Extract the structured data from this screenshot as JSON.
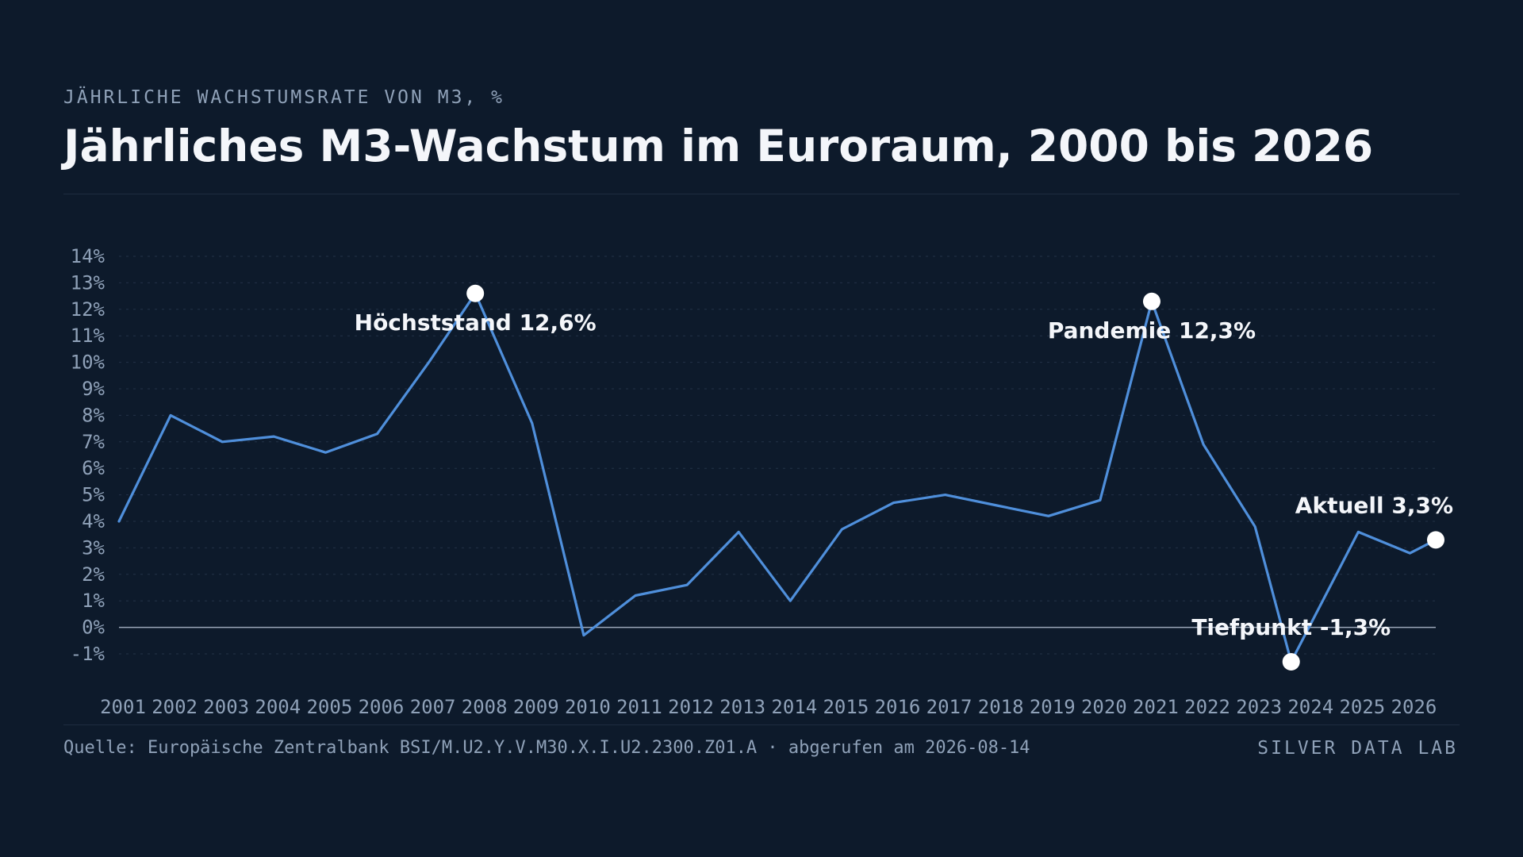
{
  "header": {
    "eyebrow": "JÄHRLICHE WACHSTUMSRATE VON M3, %",
    "title": "Jährliches M3-Wachstum im Euroraum, 2000 bis 2026"
  },
  "footer": {
    "source": "Quelle: Europäische Zentralbank BSI/M.U2.Y.V.M30.X.I.U2.2300.Z01.A · abgerufen am 2026-08-14",
    "brand": "SILVER DATA LAB"
  },
  "colors": {
    "background": "#0d1a2b",
    "line": "#4f8fdb",
    "text": "#f4f6fa",
    "muted": "#8fa1b8",
    "grid": "#233247",
    "zero_line": "#9aa7b8",
    "marker": "#ffffff"
  },
  "chart_data": {
    "type": "line",
    "x": [
      2001.0,
      2002.0,
      2003.0,
      2004.0,
      2005.0,
      2006.0,
      2007.0,
      2007.9,
      2009.0,
      2010.0,
      2011.0,
      2012.0,
      2013.0,
      2014.0,
      2015.0,
      2016.0,
      2017.0,
      2018.0,
      2019.0,
      2020.0,
      2021.0,
      2022.0,
      2023.0,
      2023.7,
      2025.0,
      2026.0,
      2026.5
    ],
    "series": [
      {
        "values": [
          4.0,
          8.0,
          7.0,
          7.2,
          6.6,
          7.3,
          10.0,
          12.6,
          7.7,
          -0.3,
          1.2,
          1.6,
          3.6,
          1.0,
          3.7,
          4.7,
          5.0,
          4.6,
          4.2,
          4.8,
          12.3,
          6.9,
          3.8,
          -1.3,
          3.6,
          2.8,
          3.3
        ]
      }
    ],
    "x_ticks": [
      "2001",
      "2002",
      "2003",
      "2004",
      "2005",
      "2006",
      "2007",
      "2008",
      "2009",
      "2010",
      "2011",
      "2012",
      "2013",
      "2014",
      "2015",
      "2016",
      "2017",
      "2018",
      "2019",
      "2020",
      "2021",
      "2022",
      "2023",
      "2024",
      "2025",
      "2026"
    ],
    "y_ticks": [
      "-1%",
      "0%",
      "1%",
      "2%",
      "3%",
      "4%",
      "5%",
      "6%",
      "7%",
      "8%",
      "9%",
      "10%",
      "11%",
      "12%",
      "13%",
      "14%"
    ],
    "ylim": [
      -1,
      14
    ],
    "xlim": [
      2001,
      2026.5
    ],
    "grid": "horizontal dotted",
    "annotations": [
      {
        "label": "Höchststand 12,6%",
        "x": 2007.9,
        "y": 12.6,
        "placement": "below"
      },
      {
        "label": "Pandemie 12,3%",
        "x": 2021.0,
        "y": 12.3,
        "placement": "below"
      },
      {
        "label": "Tiefpunkt -1,3%",
        "x": 2023.7,
        "y": -1.3,
        "placement": "above"
      },
      {
        "label": "Aktuell 3,3%",
        "x": 2026.5,
        "y": 3.3,
        "placement": "above"
      }
    ]
  }
}
